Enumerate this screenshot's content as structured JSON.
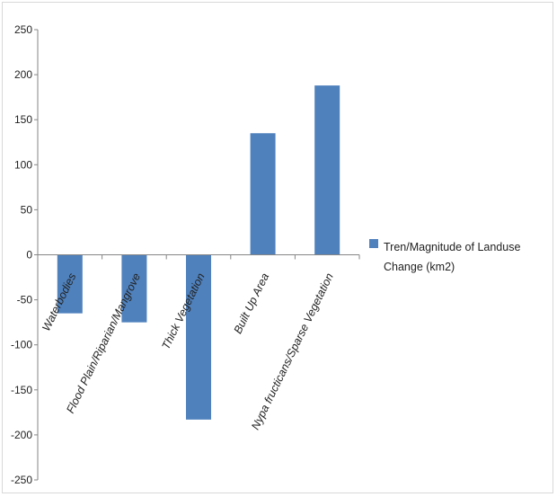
{
  "chart_data": {
    "type": "bar",
    "categories": [
      "Waterbodies",
      "Flood Plain/Riparian/Mangrove",
      "Thick Vegetation",
      "Built Up Area",
      "Nypa fructicans/Sparse Vegetation"
    ],
    "series": [
      {
        "name": "Tren/Magnitude of Landuse Change (km2)",
        "values": [
          -65,
          -75,
          -183,
          135,
          188
        ],
        "color": "#4f81bd"
      }
    ],
    "yticks": [
      250,
      200,
      150,
      100,
      50,
      0,
      -50,
      -100,
      -150,
      -200,
      -250
    ],
    "ylim": [
      -250,
      250
    ],
    "grid": false,
    "legend": "right"
  }
}
